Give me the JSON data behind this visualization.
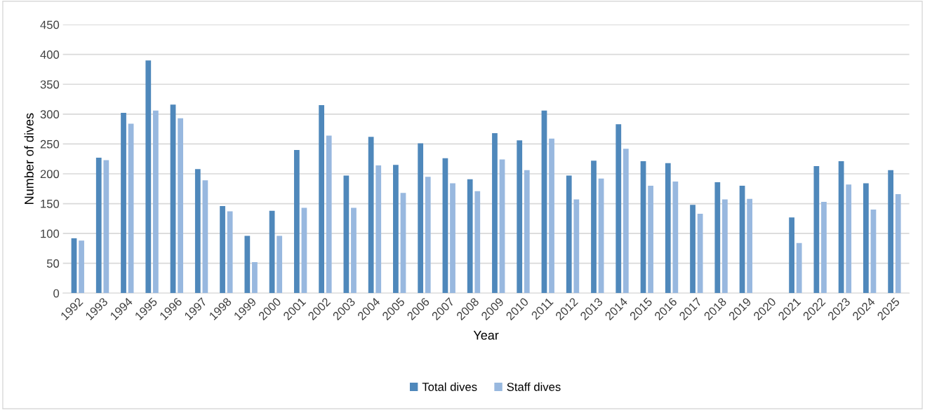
{
  "chart_data": {
    "type": "bar",
    "xlabel": "Year",
    "ylabel": "Number of dives",
    "categories": [
      "1992",
      "1993",
      "1994",
      "1995",
      "1996",
      "1997",
      "1998",
      "1999",
      "2000",
      "2001",
      "2002",
      "2003",
      "2004",
      "2005",
      "2006",
      "2007",
      "2008",
      "2009",
      "2010",
      "2011",
      "2012",
      "2013",
      "2014",
      "2015",
      "2016",
      "2017",
      "2018",
      "2019",
      "2020",
      "2021",
      "2022",
      "2023",
      "2024",
      "2025"
    ],
    "series": [
      {
        "name": "Total dives",
        "color": "#4f88bb",
        "values": [
          92,
          227,
          302,
          390,
          316,
          208,
          146,
          96,
          138,
          240,
          315,
          197,
          262,
          215,
          251,
          226,
          191,
          268,
          256,
          306,
          197,
          222,
          283,
          221,
          218,
          148,
          186,
          180,
          null,
          127,
          213,
          221,
          184,
          206
        ]
      },
      {
        "name": "Staff dives",
        "color": "#98b8df",
        "values": [
          88,
          223,
          284,
          306,
          293,
          189,
          137,
          52,
          96,
          143,
          264,
          143,
          214,
          168,
          195,
          184,
          171,
          224,
          206,
          259,
          157,
          192,
          242,
          180,
          187,
          133,
          157,
          158,
          null,
          84,
          153,
          182,
          140,
          166
        ]
      }
    ],
    "ylim": [
      0,
      450
    ],
    "yticks": [
      0,
      50,
      100,
      150,
      200,
      250,
      300,
      350,
      400,
      450
    ],
    "grid": "y",
    "legend": "bottom"
  }
}
